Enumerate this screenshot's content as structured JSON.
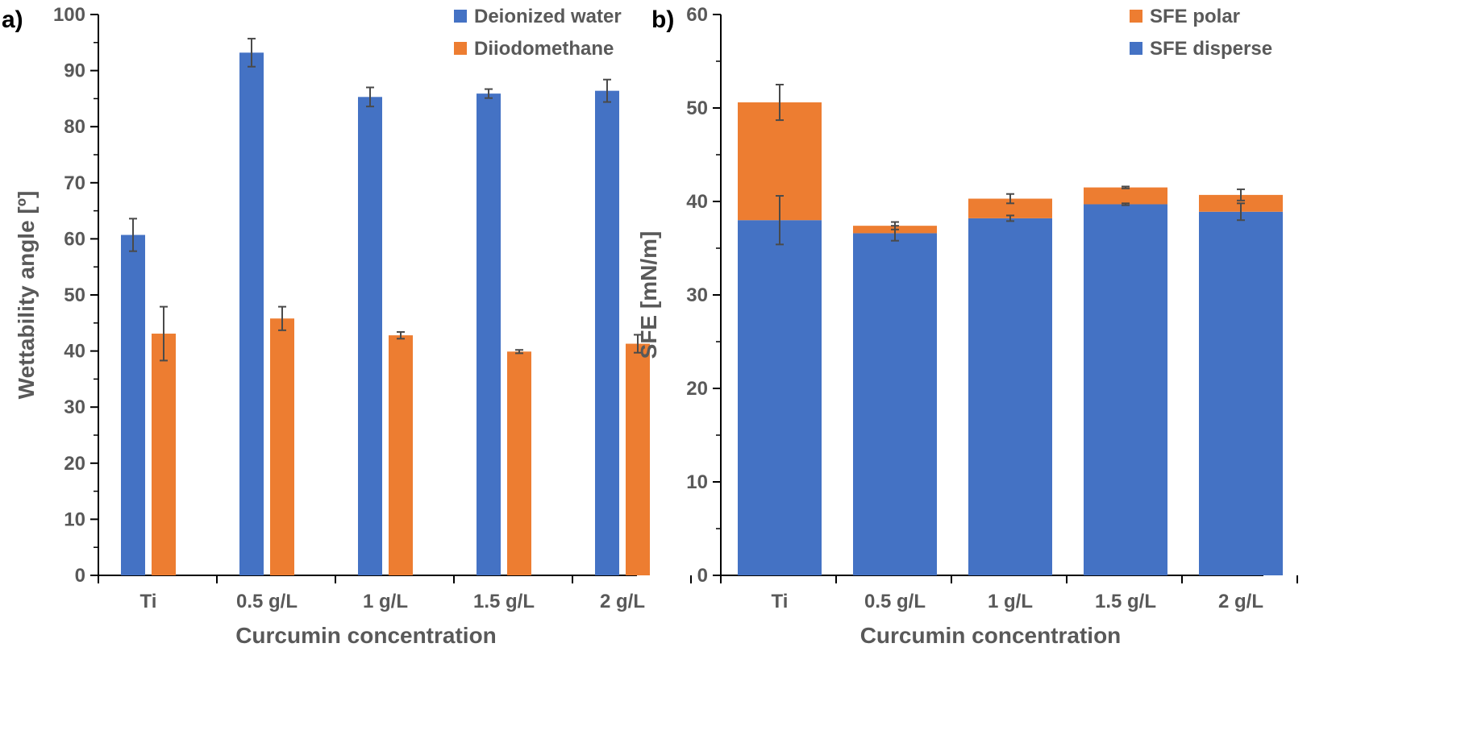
{
  "chart_data": [
    {
      "panel_label": "a)",
      "type": "bar",
      "categories": [
        "Ti",
        "0.5 g/L",
        "1 g/L",
        "1.5 g/L",
        "2 g/L"
      ],
      "series": [
        {
          "name": "Deionized water",
          "color": "#4472C4",
          "values": [
            60.7,
            93.2,
            85.3,
            85.9,
            86.4
          ],
          "errors": [
            2.9,
            2.5,
            1.7,
            0.8,
            2.0
          ]
        },
        {
          "name": "Diiodomethane",
          "color": "#ED7D31",
          "values": [
            43.1,
            45.8,
            42.8,
            39.9,
            41.3
          ],
          "errors": [
            4.8,
            2.1,
            0.6,
            0.3,
            1.6
          ]
        }
      ],
      "xlabel": "Curcumin concentration",
      "ylabel": "Wettability angle [º]",
      "ylim": [
        0,
        100
      ],
      "yticks": [
        "0",
        "10",
        "20",
        "30",
        "40",
        "50",
        "60",
        "70",
        "80",
        "90",
        "100"
      ],
      "grid": false,
      "legend": "top-right"
    },
    {
      "panel_label": "b)",
      "type": "bar",
      "stacked": true,
      "categories": [
        "Ti",
        "0.5 g/L",
        "1 g/L",
        "1.5 g/L",
        "2 g/L"
      ],
      "series": [
        {
          "name": "SFE disperse",
          "color": "#4472C4",
          "values": [
            38.0,
            36.6,
            38.2,
            39.7,
            38.9
          ],
          "errors": [
            2.6,
            0.8,
            0.3,
            0.1,
            0.9
          ]
        },
        {
          "name": "SFE polar",
          "color": "#ED7D31",
          "values": [
            12.6,
            0.8,
            2.1,
            1.8,
            1.8
          ],
          "errors": [
            1.9,
            0.4,
            0.5,
            0.1,
            0.6
          ]
        }
      ],
      "legend_order": [
        "SFE polar",
        "SFE disperse"
      ],
      "xlabel": "Curcumin concentration",
      "ylabel": "SFE [mN/m]",
      "ylim": [
        0,
        60
      ],
      "yticks": [
        "0",
        "10",
        "20",
        "30",
        "40",
        "50",
        "60"
      ],
      "grid": false,
      "legend": "top-right"
    }
  ]
}
